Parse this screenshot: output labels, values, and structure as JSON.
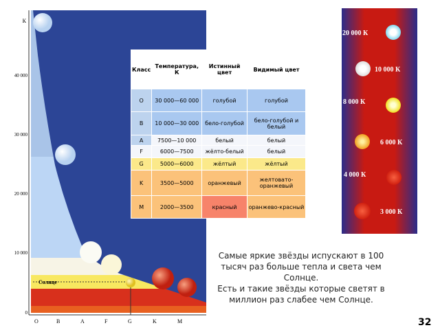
{
  "diagram": {
    "y_axis_title": "К",
    "y_ticks": [
      "40 000",
      "30 000",
      "20 000",
      "10 000",
      "0"
    ],
    "sun_label": "Солнце",
    "classes": [
      "O",
      "B",
      "A",
      "F",
      "G",
      "K",
      "M"
    ]
  },
  "table": {
    "header": [
      "Класс",
      "Температура, К",
      "Истинный цвет",
      "Видимый цвет"
    ],
    "rows": [
      [
        "O",
        "30 000—60 000",
        "голубой",
        "голубой"
      ],
      [
        "B",
        "10 000—30 000",
        "бело-голубой",
        "бело-голубой и белый"
      ],
      [
        "A",
        "7500—10 000",
        "белый",
        "белый"
      ],
      [
        "F",
        "6000—7500",
        "жёлто-белый",
        "белый"
      ],
      [
        "G",
        "5000—6000",
        "жёлтый",
        "жёлтый"
      ],
      [
        "K",
        "3500—5000",
        "оранжевый",
        "желтовато-оранжевый"
      ],
      [
        "M",
        "2000—3500",
        "красный",
        "оранжево-красный"
      ]
    ]
  },
  "stars": [
    "20 000 К",
    "10 000 К",
    "8 000 К",
    "6 000 К",
    "4 000 К",
    "3 000 К"
  ],
  "caption": [
    "Самые яркие звёзды испускают в 100 тысяч раз больше тепла и света чем Солнце.",
    "Есть и такие звёзды которые светят в миллион раз слабее чем Солнце."
  ],
  "page_number": "32"
}
